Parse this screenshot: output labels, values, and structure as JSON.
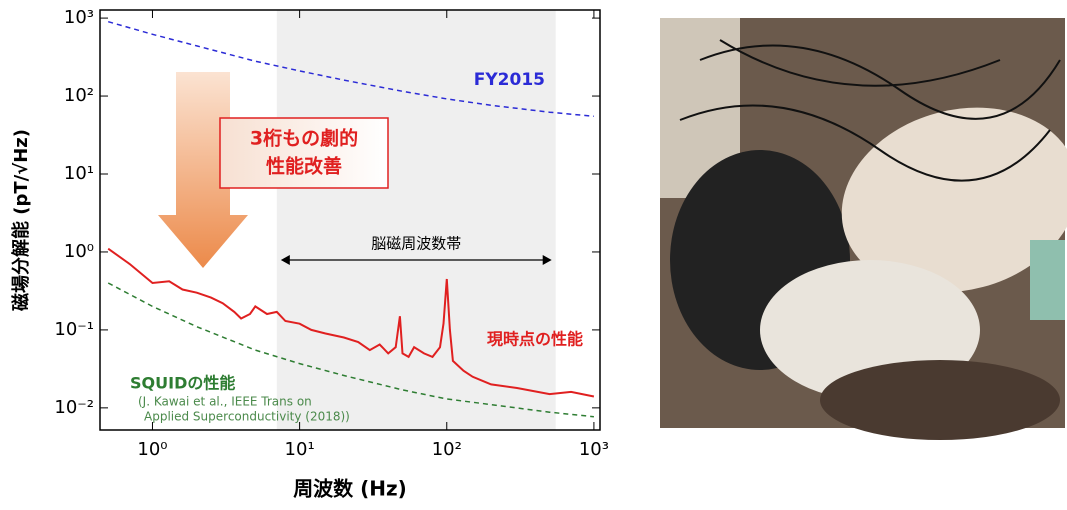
{
  "chart_data": {
    "type": "line",
    "xlabel": "周波数 (Hz)",
    "ylabel": "磁場分解能 (pT/√Hz)",
    "log_x": true,
    "log_y": true,
    "xlim": [
      0.44,
      1100
    ],
    "ylim": [
      0.0052,
      1270
    ],
    "xticks": [
      {
        "value": 1,
        "label": "10⁰"
      },
      {
        "value": 10,
        "label": "10¹"
      },
      {
        "value": 100,
        "label": "10²"
      },
      {
        "value": 1000,
        "label": "10³"
      }
    ],
    "yticks": [
      {
        "value": 0.01,
        "label": "10⁻²"
      },
      {
        "value": 0.1,
        "label": "10⁻¹"
      },
      {
        "value": 1,
        "label": "10⁰"
      },
      {
        "value": 10,
        "label": "10¹"
      },
      {
        "value": 100,
        "label": "10²"
      },
      {
        "value": 1000,
        "label": "10³"
      }
    ],
    "band": {
      "label": "脳磁周波数帯",
      "range": [
        7,
        550
      ],
      "color": "#efefef"
    },
    "series": [
      {
        "name": "FY2015",
        "color": "#2b2bd6",
        "dashed": true,
        "x": [
          0.5,
          1,
          2,
          5,
          10,
          20,
          50,
          100,
          200,
          500,
          1000
        ],
        "values": [
          900,
          620,
          440,
          280,
          210,
          160,
          115,
          92,
          76,
          62,
          55
        ]
      },
      {
        "name": "SQUIDの性能",
        "color": "#2e7d32",
        "dashed": true,
        "x": [
          0.5,
          1,
          2,
          5,
          10,
          20,
          50,
          100,
          200,
          500,
          1000
        ],
        "values": [
          0.4,
          0.2,
          0.11,
          0.055,
          0.037,
          0.026,
          0.017,
          0.013,
          0.011,
          0.0088,
          0.0077
        ]
      },
      {
        "name": "現時点の性能",
        "color": "#e02020",
        "dashed": false,
        "x": [
          0.5,
          0.7,
          1,
          1.3,
          1.6,
          2,
          2.5,
          3,
          3.6,
          4,
          4.6,
          5,
          6,
          7,
          8,
          10,
          12,
          15,
          20,
          25,
          30,
          35,
          40,
          45,
          48,
          50,
          55,
          60,
          70,
          80,
          90,
          95,
          100,
          105,
          110,
          130,
          150,
          200,
          300,
          500,
          700,
          1000
        ],
        "values": [
          1.1,
          0.7,
          0.4,
          0.42,
          0.33,
          0.3,
          0.26,
          0.22,
          0.17,
          0.14,
          0.16,
          0.2,
          0.16,
          0.17,
          0.13,
          0.12,
          0.1,
          0.09,
          0.08,
          0.07,
          0.055,
          0.065,
          0.05,
          0.06,
          0.15,
          0.05,
          0.045,
          0.06,
          0.05,
          0.045,
          0.06,
          0.12,
          0.45,
          0.1,
          0.04,
          0.03,
          0.025,
          0.02,
          0.018,
          0.015,
          0.016,
          0.014
        ]
      }
    ],
    "annotations": {
      "improvement": [
        "3桁もの劇的",
        "性能改善"
      ],
      "citation": [
        "(J. Kawai et al., IEEE Trans on",
        "Applied Superconductivity (2018))"
      ]
    }
  }
}
